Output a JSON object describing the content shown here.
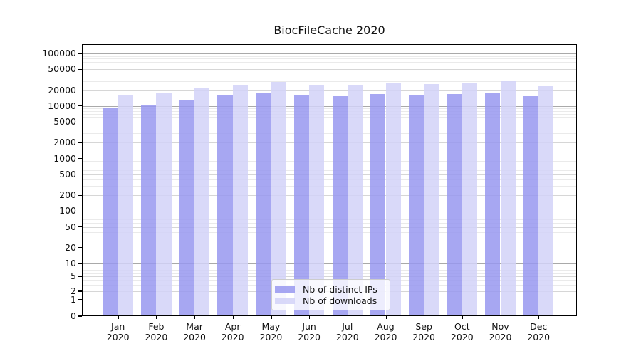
{
  "title": "BiocFileCache 2020",
  "colors": {
    "distinct_ips_bar": "#9898f0",
    "downloads_bar": "#d2d2f8",
    "grid_major": "#a9a9a9",
    "grid_mid": "#d6d6d6",
    "grid_minor": "#eaeaea",
    "text": "#111111"
  },
  "legend": {
    "items": [
      {
        "label": "Nb of distinct IPs",
        "color_key": "distinct_ips_bar"
      },
      {
        "label": "Nb of downloads",
        "color_key": "downloads_bar"
      }
    ]
  },
  "chart_data": {
    "type": "bar",
    "title": "BiocFileCache 2020",
    "categories": [
      "Jan 2020",
      "Feb 2020",
      "Mar 2020",
      "Apr 2020",
      "May 2020",
      "Jun 2020",
      "Jul 2020",
      "Aug 2020",
      "Sep 2020",
      "Oct 2020",
      "Nov 2020",
      "Dec 2020"
    ],
    "category_line1": [
      "Jan",
      "Feb",
      "Mar",
      "Apr",
      "May",
      "Jun",
      "Jul",
      "Aug",
      "Sep",
      "Oct",
      "Nov",
      "Dec"
    ],
    "category_line2": [
      "2020",
      "2020",
      "2020",
      "2020",
      "2020",
      "2020",
      "2020",
      "2020",
      "2020",
      "2020",
      "2020",
      "2020"
    ],
    "series": [
      {
        "name": "Nb of distinct IPs",
        "values": [
          9500,
          10700,
          13200,
          16400,
          18000,
          16100,
          15400,
          17100,
          16400,
          16800,
          17500,
          15600
        ]
      },
      {
        "name": "Nb of downloads",
        "values": [
          16100,
          18200,
          21800,
          25500,
          28700,
          25400,
          25700,
          26900,
          26000,
          27900,
          30000,
          24200
        ]
      }
    ],
    "xlabel": "",
    "ylabel": "",
    "yscale": "symlog",
    "ytick_values": [
      0,
      1,
      2,
      5,
      10,
      20,
      50,
      100,
      200,
      500,
      1000,
      2000,
      5000,
      10000,
      20000,
      50000,
      100000
    ],
    "ylim": [
      0,
      150000
    ],
    "grid": true,
    "legend_position": "lower center"
  }
}
